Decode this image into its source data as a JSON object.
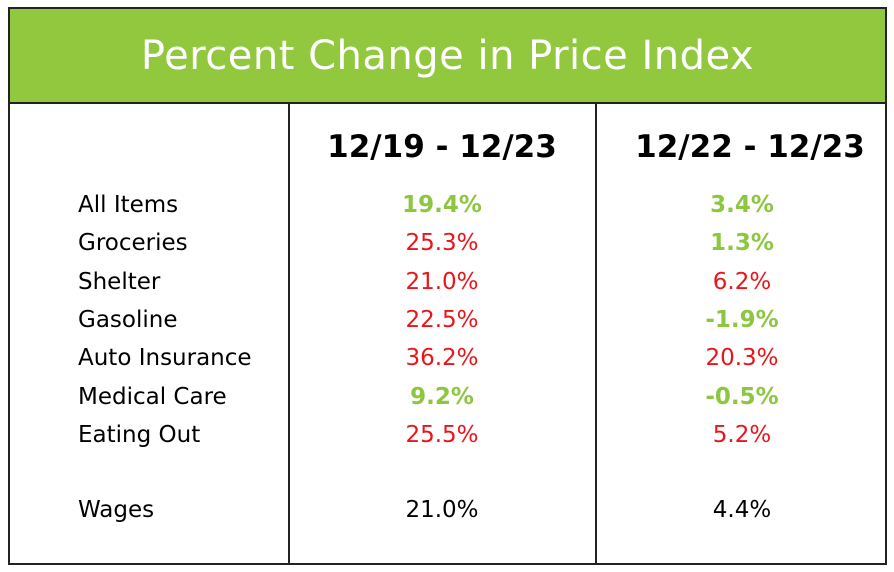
{
  "chart_data": {
    "type": "table",
    "title": "Percent Change in Price Index",
    "columns": [
      "12/19 - 12/23",
      "12/22 - 12/23"
    ],
    "rows": [
      {
        "label": "All Items",
        "values": [
          "19.4%",
          "3.4%"
        ],
        "status": [
          "good",
          "good"
        ]
      },
      {
        "label": "Groceries",
        "values": [
          "25.3%",
          "1.3%"
        ],
        "status": [
          "bad",
          "good"
        ]
      },
      {
        "label": "Shelter",
        "values": [
          "21.0%",
          "6.2%"
        ],
        "status": [
          "bad",
          "bad"
        ]
      },
      {
        "label": "Gasoline",
        "values": [
          "22.5%",
          "-1.9%"
        ],
        "status": [
          "bad",
          "good"
        ]
      },
      {
        "label": "Auto Insurance",
        "values": [
          "36.2%",
          "20.3%"
        ],
        "status": [
          "bad",
          "bad"
        ]
      },
      {
        "label": "Medical Care",
        "values": [
          "9.2%",
          "-0.5%"
        ],
        "status": [
          "good",
          "good"
        ]
      },
      {
        "label": "Eating Out",
        "values": [
          "25.5%",
          "5.2%"
        ],
        "status": [
          "bad",
          "bad"
        ]
      }
    ],
    "footer_row": {
      "label": "Wages",
      "values": [
        "21.0%",
        "4.4%"
      ]
    }
  },
  "colors": {
    "header_bg": "#92c83e",
    "good": "#8dc63f",
    "bad": "#e8161b",
    "neutral": "#000000"
  }
}
